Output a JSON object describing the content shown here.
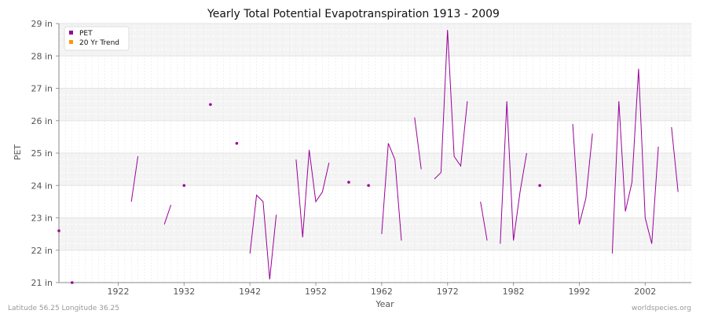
{
  "chart_data": {
    "type": "line",
    "title": "Yearly Total Potential Evapotranspiration 1913 - 2009",
    "xlabel": "Year",
    "ylabel": "PET",
    "xlim": [
      1913,
      2009
    ],
    "ylim": [
      21,
      29
    ],
    "x_ticks": [
      1922,
      1932,
      1942,
      1952,
      1962,
      1972,
      1982,
      1992,
      2002
    ],
    "y_ticks": [
      21,
      22,
      23,
      24,
      25,
      26,
      27,
      28,
      29
    ],
    "y_tick_suffix": " in",
    "grid": true,
    "legend_position": "top-left",
    "series": [
      {
        "name": "PET",
        "color": "#990099",
        "points": [
          [
            1913,
            22.6
          ],
          [
            1914,
            null
          ],
          [
            1915,
            21.0
          ],
          [
            1916,
            null
          ],
          [
            1917,
            null
          ],
          [
            1918,
            null
          ],
          [
            1919,
            null
          ],
          [
            1920,
            null
          ],
          [
            1921,
            null
          ],
          [
            1922,
            null
          ],
          [
            1923,
            null
          ],
          [
            1924,
            23.5
          ],
          [
            1925,
            24.9
          ],
          [
            1926,
            null
          ],
          [
            1927,
            null
          ],
          [
            1928,
            null
          ],
          [
            1929,
            22.8
          ],
          [
            1930,
            23.4
          ],
          [
            1931,
            null
          ],
          [
            1932,
            24.0
          ],
          [
            1933,
            null
          ],
          [
            1934,
            null
          ],
          [
            1935,
            null
          ],
          [
            1936,
            26.5
          ],
          [
            1937,
            null
          ],
          [
            1938,
            null
          ],
          [
            1939,
            null
          ],
          [
            1940,
            25.3
          ],
          [
            1941,
            null
          ],
          [
            1942,
            21.9
          ],
          [
            1943,
            23.7
          ],
          [
            1944,
            23.5
          ],
          [
            1945,
            21.1
          ],
          [
            1946,
            23.1
          ],
          [
            1947,
            null
          ],
          [
            1948,
            null
          ],
          [
            1949,
            24.8
          ],
          [
            1950,
            22.4
          ],
          [
            1951,
            25.1
          ],
          [
            1952,
            23.5
          ],
          [
            1953,
            23.8
          ],
          [
            1954,
            24.7
          ],
          [
            1955,
            null
          ],
          [
            1956,
            null
          ],
          [
            1957,
            24.1
          ],
          [
            1958,
            null
          ],
          [
            1959,
            null
          ],
          [
            1960,
            24.0
          ],
          [
            1961,
            null
          ],
          [
            1962,
            22.5
          ],
          [
            1963,
            25.3
          ],
          [
            1964,
            24.8
          ],
          [
            1965,
            22.3
          ],
          [
            1966,
            null
          ],
          [
            1967,
            26.1
          ],
          [
            1968,
            24.5
          ],
          [
            1969,
            null
          ],
          [
            1970,
            24.2
          ],
          [
            1971,
            24.4
          ],
          [
            1972,
            28.8
          ],
          [
            1973,
            24.9
          ],
          [
            1974,
            24.6
          ],
          [
            1975,
            26.6
          ],
          [
            1976,
            null
          ],
          [
            1977,
            23.5
          ],
          [
            1978,
            22.3
          ],
          [
            1979,
            null
          ],
          [
            1980,
            22.2
          ],
          [
            1981,
            26.6
          ],
          [
            1982,
            22.3
          ],
          [
            1983,
            23.8
          ],
          [
            1984,
            25.0
          ],
          [
            1985,
            null
          ],
          [
            1986,
            24.0
          ],
          [
            1987,
            null
          ],
          [
            1988,
            null
          ],
          [
            1989,
            null
          ],
          [
            1990,
            null
          ],
          [
            1991,
            25.9
          ],
          [
            1992,
            22.8
          ],
          [
            1993,
            23.6
          ],
          [
            1994,
            25.6
          ],
          [
            1995,
            null
          ],
          [
            1996,
            null
          ],
          [
            1997,
            21.9
          ],
          [
            1998,
            26.6
          ],
          [
            1999,
            23.2
          ],
          [
            2000,
            24.1
          ],
          [
            2001,
            27.6
          ],
          [
            2002,
            23.0
          ],
          [
            2003,
            22.2
          ],
          [
            2004,
            25.2
          ],
          [
            2005,
            null
          ],
          [
            2006,
            25.8
          ],
          [
            2007,
            23.8
          ]
        ]
      },
      {
        "name": "20 Yr Trend",
        "color": "#ff9900",
        "points": []
      }
    ]
  },
  "footer": {
    "left": "Latitude 56.25 Longitude 36.25",
    "right": "worldspecies.org"
  }
}
